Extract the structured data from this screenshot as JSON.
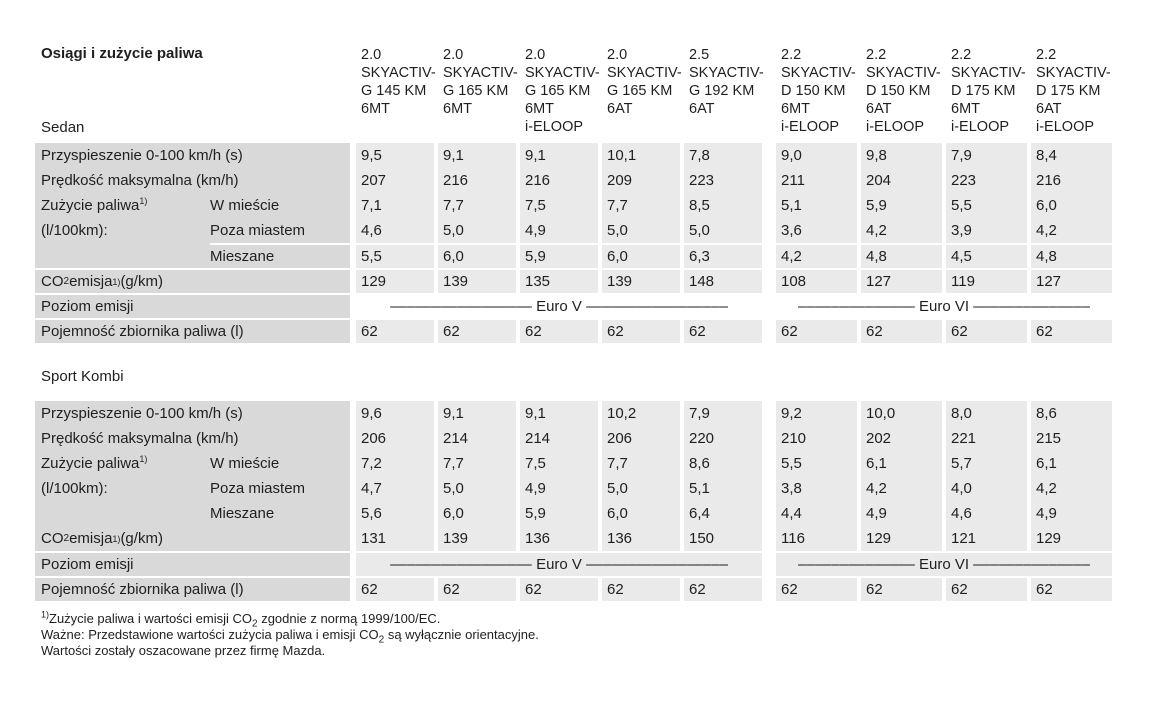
{
  "title": "Osiągi i zużycie paliwa",
  "column_headers": [
    [
      "2.0",
      "SKYACTIV-",
      "G 145 KM",
      "6MT"
    ],
    [
      "2.0",
      "SKYACTIV-",
      "G 165 KM",
      "6MT"
    ],
    [
      "2.0",
      "SKYACTIV-",
      "G 165 KM",
      "6MT",
      "i-ELOOP"
    ],
    [
      "2.0",
      "SKYACTIV-",
      "G 165 KM",
      "6AT"
    ],
    [
      "2.5",
      "SKYACTIV-",
      "G 192 KM",
      "6AT"
    ],
    [
      "2.2",
      "SKYACTIV-",
      "D 150 KM",
      "6MT",
      "i-ELOOP"
    ],
    [
      "2.2",
      "SKYACTIV-",
      "D 150 KM",
      "6AT",
      "i-ELOOP"
    ],
    [
      "2.2",
      "SKYACTIV-",
      "D 175 KM",
      "6MT",
      "i-ELOOP"
    ],
    [
      "2.2",
      "SKYACTIV-",
      "D 175 KM",
      "6AT",
      "i-ELOOP"
    ]
  ],
  "row_labels": {
    "accel": [
      {
        "t": "Przyspieszenie 0-100 km/h (s)"
      }
    ],
    "vmax": [
      {
        "t": "Prędkość maksymalna (km/h)"
      }
    ],
    "fuel_line1": [
      {
        "t": "Zużycie paliwa"
      },
      {
        "sup": "1)"
      }
    ],
    "fuel_line2": [
      {
        "t": "(l/100km):"
      }
    ],
    "city": [
      {
        "t": "W mieście"
      }
    ],
    "extra": [
      {
        "t": "Poza miastem"
      }
    ],
    "mixed": [
      {
        "t": "Mieszane"
      }
    ],
    "co2": [
      {
        "t": "CO"
      },
      {
        "sub": "2"
      },
      {
        "t": " emisja"
      },
      {
        "sup": "1)"
      },
      {
        "t": " (g/km)"
      }
    ],
    "emission": [
      {
        "t": "Poziom emisji"
      }
    ],
    "tank": [
      {
        "t": "Pojemność zbiornika paliwa (l)"
      }
    ]
  },
  "emission_bands": {
    "euro5": "––––––––––––––––– Euro V –––––––––––––––––",
    "euro6": "–––––––––––––– Euro VI ––––––––––––––"
  },
  "sections": [
    {
      "label": "Sedan",
      "values": {
        "accel": [
          "9,5",
          "9,1",
          "9,1",
          "10,1",
          "7,8",
          "9,0",
          "9,8",
          "7,9",
          "8,4"
        ],
        "vmax": [
          "207",
          "216",
          "216",
          "209",
          "223",
          "211",
          "204",
          "223",
          "216"
        ],
        "city": [
          "7,1",
          "7,7",
          "7,5",
          "7,7",
          "8,5",
          "5,1",
          "5,9",
          "5,5",
          "6,0"
        ],
        "extra": [
          "4,6",
          "5,0",
          "4,9",
          "5,0",
          "5,0",
          "3,6",
          "4,2",
          "3,9",
          "4,2"
        ],
        "mixed": [
          "5,5",
          "6,0",
          "5,9",
          "6,0",
          "6,3",
          "4,2",
          "4,8",
          "4,5",
          "4,8"
        ],
        "co2": [
          "129",
          "139",
          "135",
          "139",
          "148",
          "108",
          "127",
          "119",
          "127"
        ],
        "tank": [
          "62",
          "62",
          "62",
          "62",
          "62",
          "62",
          "62",
          "62",
          "62"
        ]
      },
      "emission_bg": "#ffffff"
    },
    {
      "label": "Sport Kombi",
      "values": {
        "accel": [
          "9,6",
          "9,1",
          "9,1",
          "10,2",
          "7,9",
          "9,2",
          "10,0",
          "8,0",
          "8,6"
        ],
        "vmax": [
          "206",
          "214",
          "214",
          "206",
          "220",
          "210",
          "202",
          "221",
          "215"
        ],
        "city": [
          "7,2",
          "7,7",
          "7,5",
          "7,7",
          "8,6",
          "5,5",
          "6,1",
          "5,7",
          "6,1"
        ],
        "extra": [
          "4,7",
          "5,0",
          "4,9",
          "5,0",
          "5,1",
          "3,8",
          "4,2",
          "4,0",
          "4,2"
        ],
        "mixed": [
          "5,6",
          "6,0",
          "5,9",
          "6,0",
          "6,4",
          "4,4",
          "4,9",
          "4,6",
          "4,9"
        ],
        "co2": [
          "131",
          "139",
          "136",
          "136",
          "150",
          "116",
          "129",
          "121",
          "129"
        ],
        "tank": [
          "62",
          "62",
          "62",
          "62",
          "62",
          "62",
          "62",
          "62",
          "62"
        ]
      },
      "emission_bg": "#eaeaea"
    }
  ],
  "footnotes": [
    [
      {
        "sup": "1)"
      },
      {
        "t": "Zużycie paliwa i wartości emisji CO"
      },
      {
        "sub": "2"
      },
      {
        "t": " zgodnie z normą 1999/100/EC."
      }
    ],
    [
      {
        "t": "Ważne: Przedstawione wartości zużycia paliwa i emisji CO"
      },
      {
        "sub": "2"
      },
      {
        "t": " są wyłącznie orientacyjne."
      }
    ],
    [
      {
        "t": "Wartości zostały oszacowane przez firmę Mazda."
      }
    ]
  ],
  "colors": {
    "label_bg": "#d9d9d9",
    "value_bg": "#eaeaea",
    "text": "#1f1f1f",
    "page_bg": "#ffffff"
  }
}
